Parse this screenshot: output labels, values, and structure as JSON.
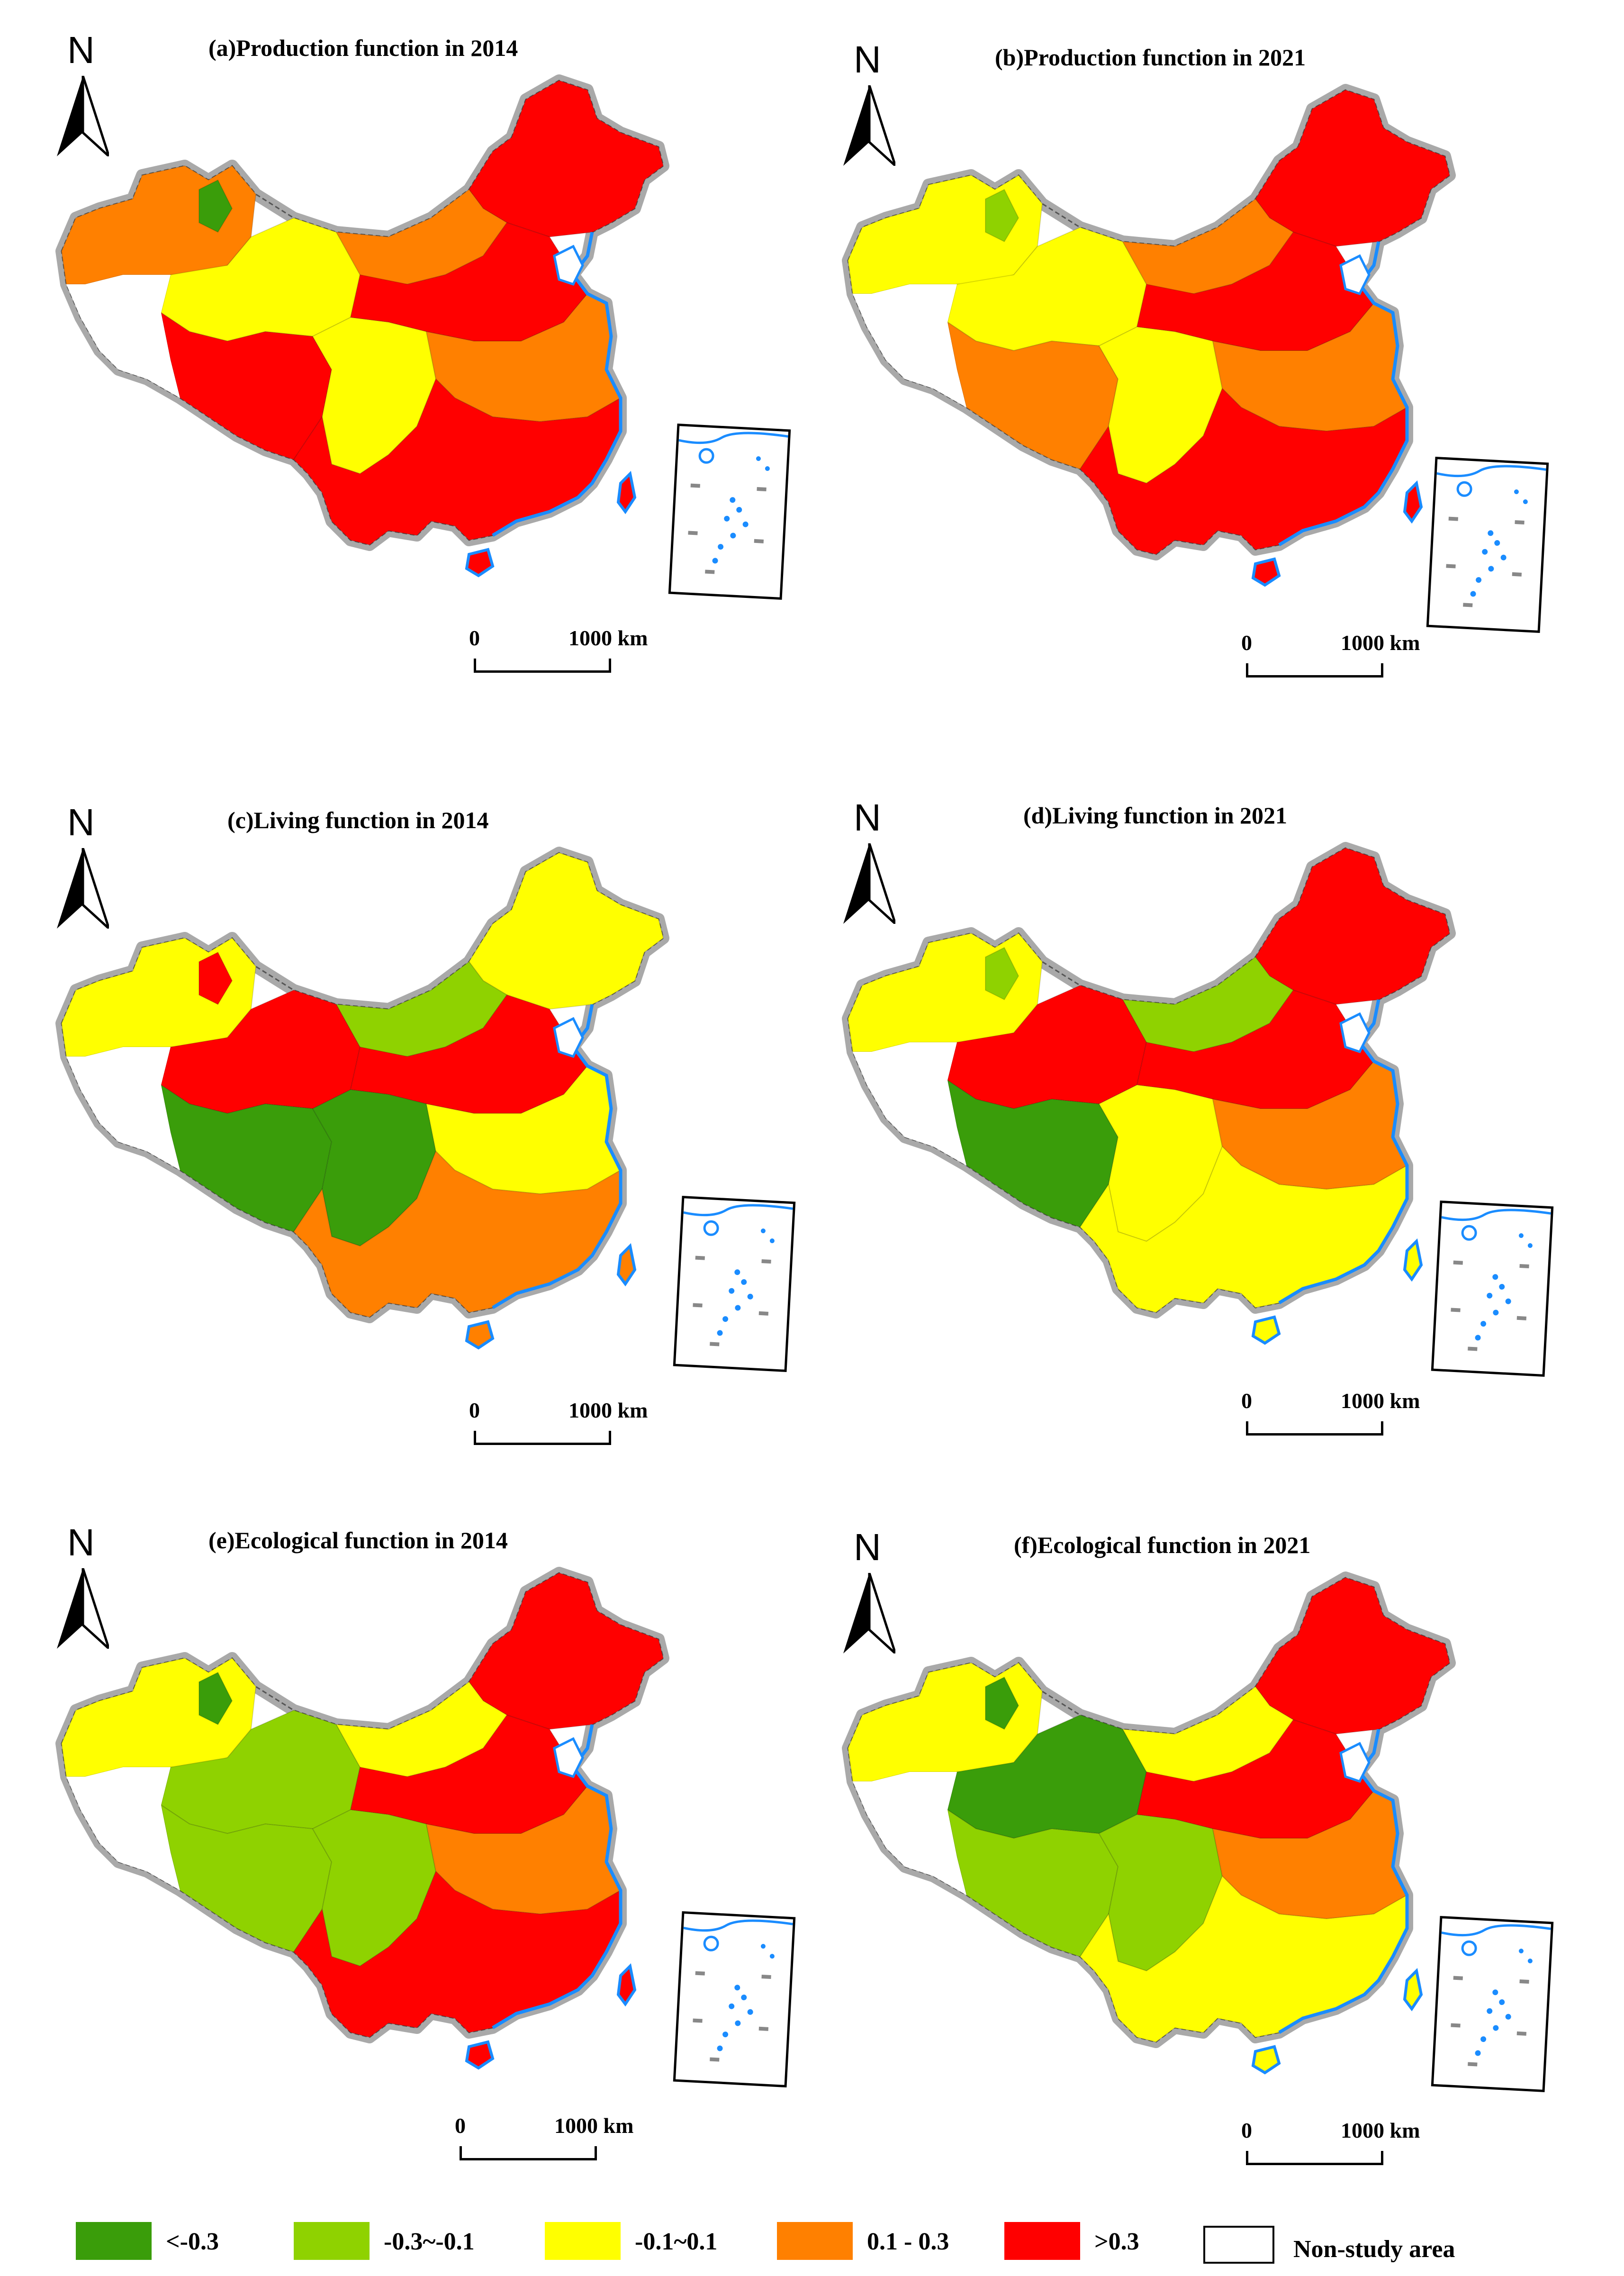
{
  "colors": {
    "lt_neg03": "#3a9d0a",
    "neg03_neg01": "#8fd200",
    "neg01_01": "#ffff00",
    "p01_p03": "#ff8000",
    "gt_03": "#ff0000",
    "border": "#a9a9a9",
    "coast": "#1a8cff"
  },
  "north_label": "N",
  "scale": {
    "zero": "0",
    "max": "1000 km"
  },
  "panels": [
    {
      "title": "(a)Production function in 2014",
      "palette": [
        "#ff8000",
        "#ffff00",
        "#ff0000",
        "#ff0000",
        "#ff8000",
        "#ff0000",
        "#ffff00",
        "#ff8000",
        "#ff0000",
        "#3a9d0a"
      ]
    },
    {
      "title": "(b)Production function in 2021",
      "palette": [
        "#ffff00",
        "#ffff00",
        "#ff0000",
        "#ff8000",
        "#ff8000",
        "#ff0000",
        "#ffff00",
        "#ff8000",
        "#ff0000",
        "#8fd200"
      ]
    },
    {
      "title": "(c)Living function in 2014",
      "palette": [
        "#ffff00",
        "#ff0000",
        "#ffff00",
        "#3a9d0a",
        "#8fd200",
        "#ff0000",
        "#3a9d0a",
        "#ffff00",
        "#ff8000",
        "#ff0000"
      ]
    },
    {
      "title": "(d)Living function in 2021",
      "palette": [
        "#ffff00",
        "#ff0000",
        "#ff0000",
        "#3a9d0a",
        "#8fd200",
        "#ff0000",
        "#ffff00",
        "#ff8000",
        "#ffff00",
        "#8fd200"
      ]
    },
    {
      "title": "(e)Ecological function in 2014",
      "palette": [
        "#ffff00",
        "#8fd200",
        "#ff0000",
        "#8fd200",
        "#ffff00",
        "#ff0000",
        "#8fd200",
        "#ff8000",
        "#ff0000",
        "#3a9d0a"
      ]
    },
    {
      "title": "(f)Ecological function in 2021",
      "palette": [
        "#ffff00",
        "#3a9d0a",
        "#ff0000",
        "#8fd200",
        "#ffff00",
        "#ff0000",
        "#8fd200",
        "#ff8000",
        "#ffff00",
        "#3a9d0a"
      ]
    }
  ],
  "legend": {
    "items": [
      {
        "label": "<-0.3",
        "color": "#3a9d0a"
      },
      {
        "label": "-0.3~-0.1",
        "color": "#8fd200"
      },
      {
        "label": "-0.1~0.1",
        "color": "#ffff00"
      },
      {
        "label": "0.1 - 0.3",
        "color": "#ff8000"
      },
      {
        "label": ">0.3",
        "color": "#ff0000"
      }
    ],
    "non_study_label": "Non-study area"
  }
}
